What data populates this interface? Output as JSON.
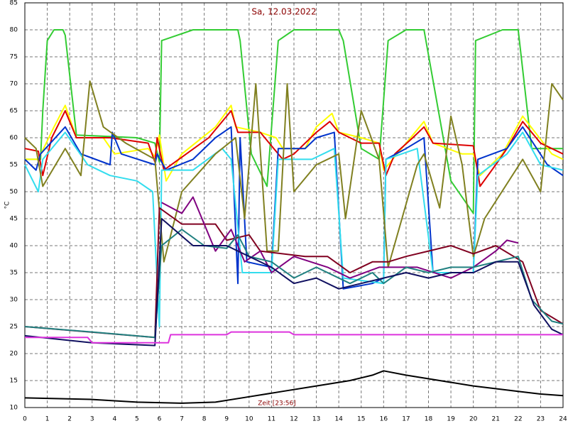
{
  "chart_data": {
    "type": "line",
    "title": "Sa, 12.03.2022",
    "y_label": "°C",
    "annotation": "Zeit [23:56]",
    "xlim": [
      0,
      24
    ],
    "ylim": [
      10,
      85
    ],
    "xticks": [
      0,
      1,
      2,
      3,
      4,
      5,
      6,
      7,
      8,
      9,
      10,
      11,
      12,
      13,
      14,
      15,
      16,
      17,
      18,
      19,
      20,
      21,
      22,
      23,
      24
    ],
    "yticks": [
      10,
      15,
      20,
      25,
      30,
      35,
      40,
      45,
      50,
      55,
      60,
      65,
      70,
      75,
      80,
      85
    ],
    "grid": true,
    "series": [
      {
        "color": "#33cc33",
        "x": [
          0,
          0.7,
          0.8,
          1,
          1.3,
          1.7,
          1.8,
          2.3,
          5,
          5.8,
          6,
          6.1,
          7.5,
          9.5,
          9.6,
          10.1,
          10.8,
          11.3,
          12,
          14,
          14.2,
          15,
          15.8,
          16.2,
          17,
          17.8,
          19,
          20,
          20.1,
          21.3,
          22,
          22.6,
          24
        ],
        "values": [
          56,
          56,
          65,
          78,
          80,
          80,
          79,
          60.5,
          60,
          59,
          55.5,
          78,
          80,
          80,
          78,
          57,
          51,
          78,
          80,
          80,
          78,
          58,
          56,
          78,
          80,
          80,
          52,
          46,
          78,
          80,
          80,
          58,
          58
        ]
      },
      {
        "color": "#ffff00",
        "x": [
          0,
          0.6,
          1.3,
          1.8,
          2.3,
          3.5,
          4,
          5.5,
          5.8,
          6,
          6.3,
          7,
          8.5,
          9.2,
          9.4,
          10.5,
          11.2,
          11.5,
          12.5,
          13,
          13.7,
          14,
          15,
          15.8,
          16,
          17,
          17.8,
          18.2,
          19.5,
          20,
          20.3,
          21.3,
          22.2,
          23.5,
          24
        ],
        "values": [
          56,
          56,
          62,
          66,
          60,
          60,
          57,
          58,
          56.5,
          60.5,
          52,
          57,
          62,
          66,
          62,
          61,
          60,
          58,
          58,
          62,
          64.5,
          61,
          60,
          59,
          54,
          59,
          63,
          59,
          57,
          57,
          53,
          57,
          64,
          57,
          56
        ]
      },
      {
        "color": "#dd0000",
        "x": [
          0,
          0.6,
          0.8,
          1.2,
          1.8,
          2.3,
          3.8,
          5.5,
          5.8,
          5.9,
          6.2,
          8.2,
          9.2,
          9.5,
          10.5,
          11.5,
          12,
          13,
          13.6,
          14,
          15,
          15.8,
          16.1,
          16.5,
          17.3,
          17.8,
          18.2,
          20,
          20.3,
          21,
          21.5,
          22.2,
          23,
          24
        ],
        "values": [
          58,
          57.5,
          53,
          60,
          65,
          60,
          60,
          59,
          55.5,
          60,
          54,
          60,
          65,
          61,
          61,
          56,
          57,
          61,
          63,
          61,
          59,
          59,
          53,
          57,
          60,
          62,
          59,
          58.5,
          51,
          55,
          58,
          63,
          59,
          57
        ]
      },
      {
        "color": "#0033cc",
        "x": [
          0,
          0.5,
          0.7,
          1.8,
          2.5,
          3.8,
          3.9,
          4.3,
          5.8,
          5.9,
          6.3,
          7.5,
          8.5,
          9.2,
          9.5,
          9.6,
          9.9,
          11,
          11.3,
          12.5,
          13,
          13.8,
          14.2,
          15.5,
          16,
          16.1,
          17,
          17.8,
          18.2,
          20,
          20.2,
          21.5,
          22.2,
          23.3,
          24
        ],
        "values": [
          56,
          54,
          57,
          62,
          57,
          55,
          61,
          57,
          55,
          57,
          54,
          56,
          60,
          62,
          33,
          60,
          37,
          36,
          58,
          58,
          60,
          61,
          32,
          33,
          34,
          56,
          58,
          60,
          35,
          35,
          56,
          58,
          62,
          55,
          53
        ]
      },
      {
        "color": "#33ddee",
        "x": [
          0,
          0.6,
          0.8,
          1.8,
          2.8,
          3.8,
          5,
          5.7,
          6,
          6.1,
          7.5,
          8.8,
          9.2,
          9.7,
          11,
          11.3,
          12.8,
          13.8,
          14.2,
          16,
          16.1,
          17.5,
          18.2,
          20,
          20.2,
          21.5,
          22.2,
          23,
          24
        ],
        "values": [
          55,
          50,
          56,
          61,
          55,
          53,
          52,
          50,
          25,
          54,
          54,
          58,
          56,
          35,
          35,
          56,
          56,
          58,
          34,
          33,
          56,
          58,
          35,
          35,
          53,
          57,
          61,
          55,
          54
        ]
      },
      {
        "color": "#808020",
        "x": [
          0,
          0.5,
          0.8,
          1.8,
          2.5,
          2.9,
          3.5,
          4.5,
          5.8,
          6.2,
          7,
          8.5,
          9.4,
          9.8,
          10.3,
          10.8,
          11.3,
          11.7,
          12,
          13,
          14,
          14.3,
          15,
          15.8,
          16.2,
          17.5,
          17.8,
          18.5,
          19,
          19.5,
          20,
          20.5,
          22.2,
          23,
          23.5,
          24
        ],
        "values": [
          60,
          58,
          51,
          58,
          53,
          70.5,
          62,
          59,
          56,
          37,
          50,
          57,
          60,
          45,
          70,
          39,
          39,
          70,
          50,
          55,
          57,
          45,
          65,
          56,
          36,
          55,
          57,
          47,
          64,
          55,
          38,
          45,
          56,
          50,
          70,
          67
        ]
      },
      {
        "color": "#800020",
        "x": [
          0,
          5.8,
          6,
          7,
          8.5,
          9,
          10,
          10.5,
          12.5,
          13.5,
          14.5,
          15.5,
          16.2,
          17,
          18,
          19,
          20,
          21,
          22.2,
          23,
          24
        ],
        "values": [
          25,
          23,
          47,
          44,
          44,
          41,
          42,
          39,
          38,
          38,
          35,
          37,
          37,
          38,
          39,
          40,
          38.5,
          40,
          37,
          28,
          25.5
        ]
      },
      {
        "color": "#800080",
        "x": [
          6.1,
          7,
          7.5,
          8.5,
          9.2,
          9.8,
          10.5,
          11,
          12,
          13.5,
          14.5,
          15.8,
          17.5,
          19,
          20,
          21,
          21.5,
          22
        ],
        "values": [
          48,
          46,
          49,
          39,
          43,
          37,
          39,
          35,
          38,
          36,
          34,
          36,
          36,
          34,
          36,
          39,
          41,
          40.5
        ]
      },
      {
        "color": "#208080",
        "x": [
          0,
          3,
          5.8,
          6.1,
          7,
          8,
          9,
          9.5,
          10,
          11,
          12,
          13,
          14.5,
          15.5,
          16,
          17,
          18,
          19,
          20,
          21,
          22,
          22.6,
          23.5,
          24
        ],
        "values": [
          25,
          24,
          23,
          40,
          43,
          40,
          39.5,
          42,
          38,
          37,
          34,
          36,
          33,
          35,
          33,
          36,
          35,
          36,
          36,
          37,
          38,
          30,
          26,
          25.5
        ]
      },
      {
        "color": "#101060",
        "x": [
          0,
          3,
          5.8,
          6.1,
          7.5,
          9,
          10,
          11,
          12,
          13,
          14,
          15,
          16,
          17,
          18,
          19,
          20,
          21,
          22,
          22.7,
          23.5,
          24
        ],
        "values": [
          23.3,
          22,
          21.5,
          45,
          40,
          40,
          38,
          36,
          33,
          34,
          32,
          33,
          34,
          35,
          34,
          35,
          35,
          37,
          37,
          29,
          24.5,
          23.5
        ]
      },
      {
        "color": "#dd33dd",
        "x": [
          0,
          2.8,
          3,
          6.4,
          6.5,
          9,
          9.2,
          11.8,
          12,
          24
        ],
        "values": [
          23,
          23,
          22,
          22,
          23.5,
          23.5,
          24,
          24,
          23.5,
          23.5
        ]
      },
      {
        "color": "#000000",
        "x": [
          0,
          3,
          5,
          7,
          8.5,
          10,
          11.5,
          13,
          14.5,
          15.5,
          16,
          17,
          18.5,
          20,
          22,
          23,
          24
        ],
        "values": [
          11.8,
          11.5,
          11,
          10.8,
          11,
          12,
          13,
          14,
          15,
          16,
          16.8,
          16,
          15,
          14,
          13,
          12.5,
          12.2
        ]
      }
    ]
  }
}
